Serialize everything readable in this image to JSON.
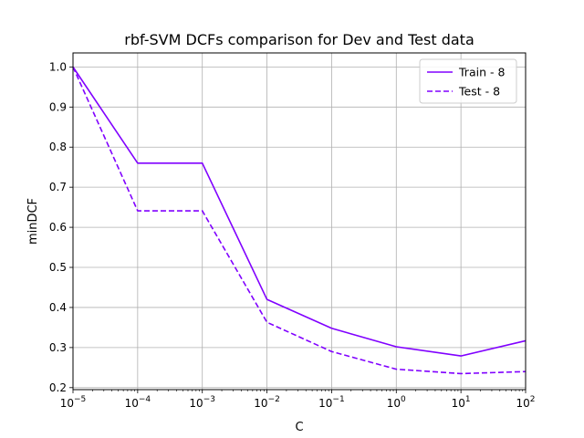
{
  "chart_data": {
    "type": "line",
    "title": "rbf-SVM DCFs comparison for Dev and Test data",
    "xlabel": "C",
    "ylabel": "minDCF",
    "x_scale": "log",
    "x": [
      1e-05,
      0.0001,
      0.001,
      0.01,
      0.1,
      1,
      10,
      100
    ],
    "x_tick_labels": [
      {
        "base": "10",
        "exp": "−5"
      },
      {
        "base": "10",
        "exp": "−4"
      },
      {
        "base": "10",
        "exp": "−3"
      },
      {
        "base": "10",
        "exp": "−2"
      },
      {
        "base": "10",
        "exp": "−1"
      },
      {
        "base": "10",
        "exp": "0"
      },
      {
        "base": "10",
        "exp": "1"
      },
      {
        "base": "10",
        "exp": "2"
      }
    ],
    "y_ticks": [
      "0.2",
      "0.3",
      "0.4",
      "0.5",
      "0.6",
      "0.7",
      "0.8",
      "0.9",
      "1.0"
    ],
    "xlim": [
      1e-05,
      100
    ],
    "ylim": [
      0.195,
      1.035
    ],
    "grid": true,
    "legend_position": "top-right",
    "series": [
      {
        "name": "Train - 8",
        "values": [
          1.0,
          0.76,
          0.76,
          0.42,
          0.348,
          0.302,
          0.279,
          0.317
        ],
        "color": "#8000ff",
        "style": "solid"
      },
      {
        "name": "Test - 8",
        "values": [
          1.0,
          0.641,
          0.641,
          0.363,
          0.29,
          0.246,
          0.235,
          0.24
        ],
        "color": "#8000ff",
        "style": "dashed"
      }
    ]
  }
}
